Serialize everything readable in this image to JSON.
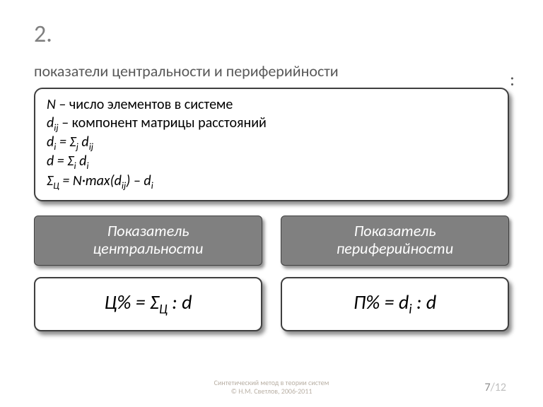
{
  "section_number": "2.",
  "colon": ":",
  "subtitle": "показатели центральности и периферийности",
  "definitions": {
    "line1_pre": "N",
    "line1_rest": " – число элементов в системе",
    "line2_pre": "d",
    "line2_sub": "ij",
    "line2_rest": " – компонент матрицы расстояний",
    "line3": "d<sub>i</sub> = Σ<sub>j</sub> d<sub>ij</sub>",
    "line4": "d = Σ<sub>i</sub> d<sub>i</sub>",
    "line5": "Σ<sub>Ц</sub> = N·max(d<sub>ij</sub>) – d<sub>i</sub>"
  },
  "labels": {
    "centrality_l1": "Показатель",
    "centrality_l2": "центральности",
    "periphery_l1": "Показатель",
    "periphery_l2": "периферийности"
  },
  "formulas": {
    "centrality": "Ц% = Σ<sub>Ц</sub> : d",
    "periphery": "П% = d<sub>i</sub> : d"
  },
  "footer": {
    "line1": "Синтетический метод в теории систем",
    "line2": "© Н.М. Светлов, 2006-2011"
  },
  "page": {
    "current": "7",
    "sep": "/",
    "total": "12"
  },
  "colors": {
    "heading_gray": "#7f7f7f",
    "subtitle_gray": "#595959",
    "box_border": "#3f3f3f",
    "label_bg": "#808080",
    "footer_gray": "#b9b0a5"
  }
}
